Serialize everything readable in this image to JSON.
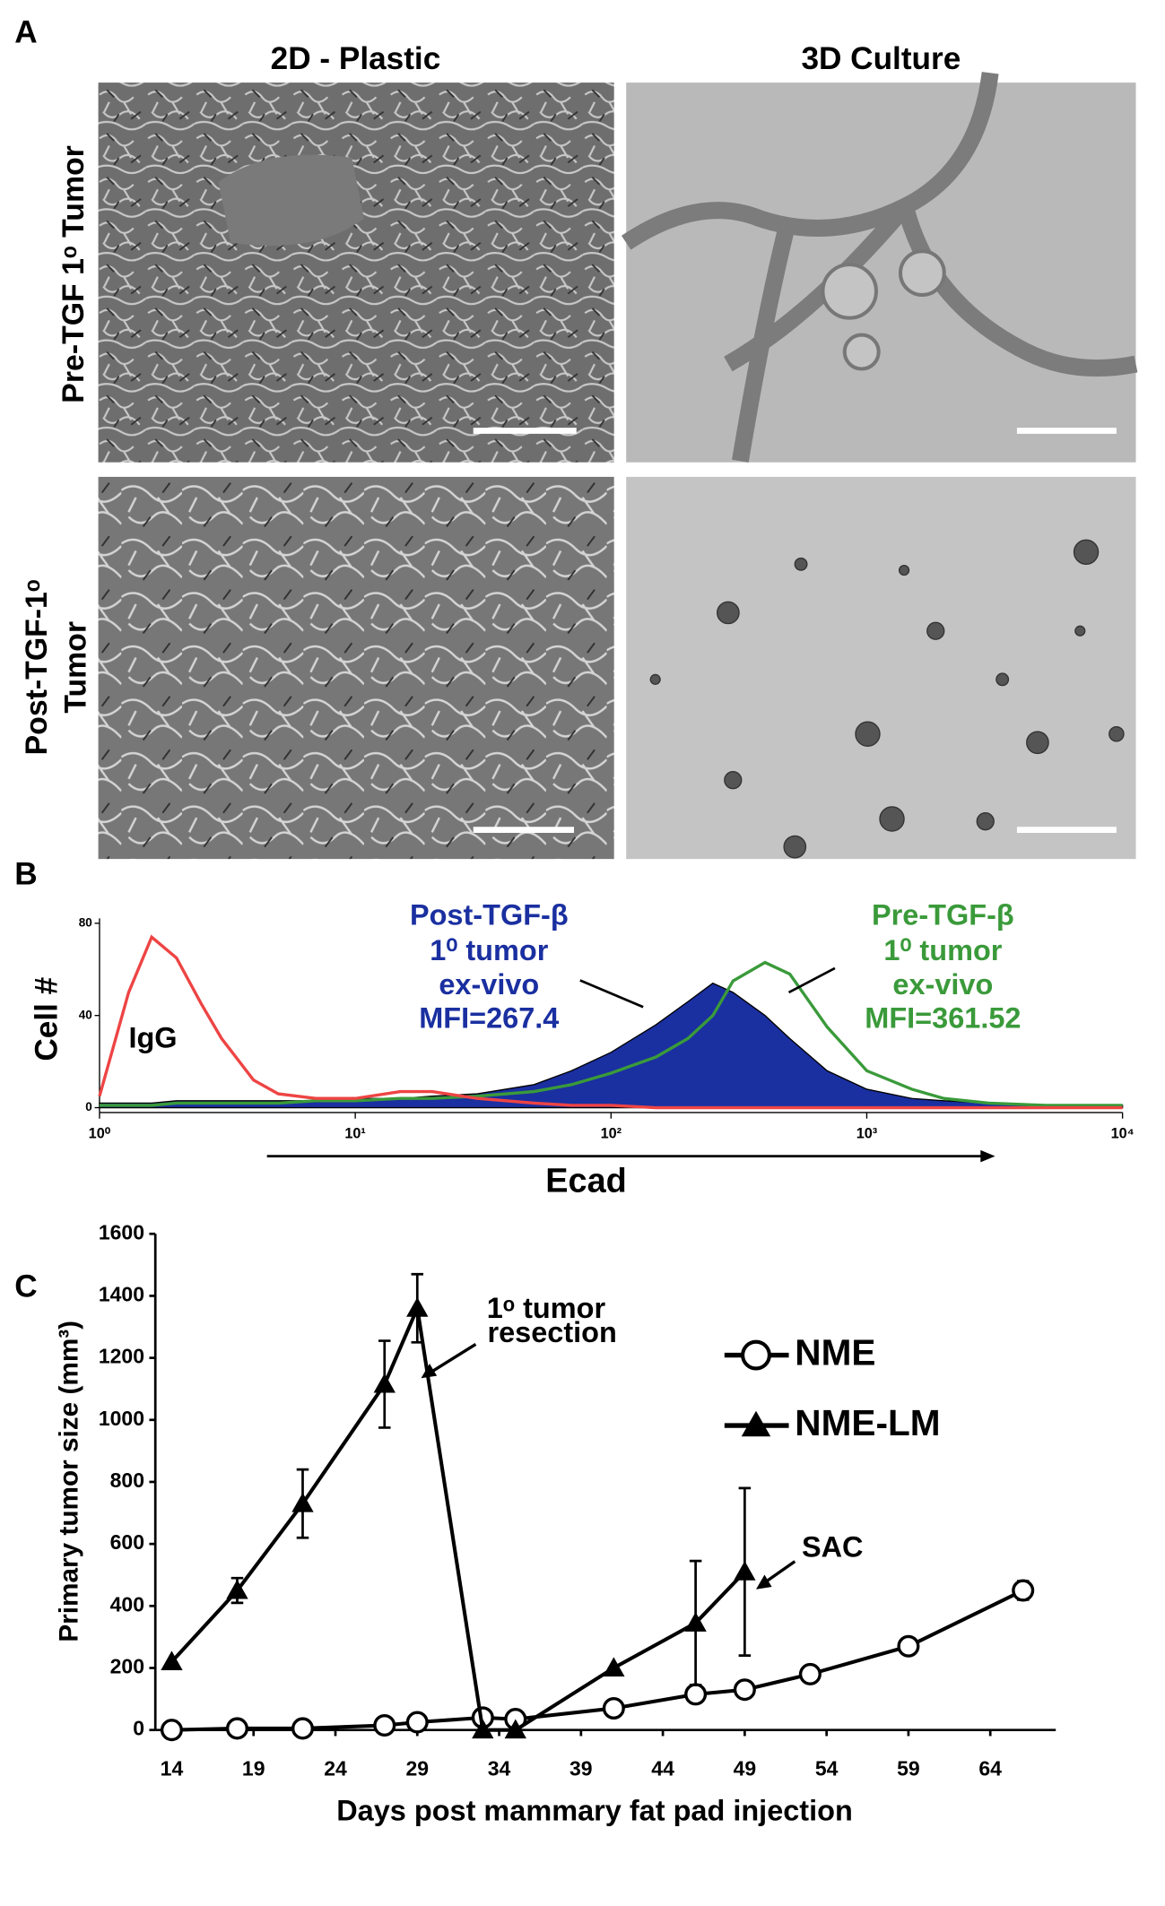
{
  "panel_a": {
    "label": "A",
    "columns": [
      "2D - Plastic",
      "3D Culture"
    ],
    "rows": [
      "Pre-TGF 1ᵒ Tumor",
      "Post-TGF-1ᵒ",
      "Tumor"
    ]
  },
  "chart_data": [
    {
      "type": "histogram-overlay",
      "panel_label": "B",
      "y_label": "Cell #",
      "x_label": "Ecad",
      "log_x": true,
      "x": [
        1,
        1.3,
        1.6,
        2,
        2.5,
        3,
        4,
        5,
        7,
        10,
        15,
        20,
        30,
        50,
        70,
        100,
        150,
        200,
        250,
        300,
        400,
        500,
        700,
        1000,
        1500,
        2000,
        3000,
        5000,
        10000
      ],
      "series": [
        {
          "name": "IgG",
          "color": "#ee4444",
          "fill": false,
          "values": [
            5,
            50,
            74,
            65,
            45,
            30,
            12,
            6,
            4,
            4,
            7,
            7,
            4,
            2,
            1,
            1,
            0,
            0,
            0,
            0,
            0,
            0,
            0,
            0,
            0,
            0,
            0,
            0,
            0
          ]
        },
        {
          "name": "Post-TGF-β",
          "color": "#1a2fa0",
          "fill": true,
          "values": [
            2,
            2,
            2,
            3,
            3,
            3,
            3,
            3,
            3,
            4,
            4,
            5,
            6,
            10,
            16,
            24,
            36,
            46,
            54,
            50,
            40,
            30,
            16,
            8,
            4,
            3,
            2,
            1,
            1
          ]
        },
        {
          "name": "Pre-TGF-β",
          "color": "#3a9a3a",
          "fill": false,
          "values": [
            1,
            1,
            1,
            2,
            2,
            2,
            2,
            2,
            3,
            3,
            4,
            4,
            5,
            7,
            10,
            15,
            22,
            30,
            40,
            55,
            63,
            58,
            35,
            16,
            8,
            4,
            2,
            1,
            1
          ]
        }
      ],
      "annotations": [
        "1⁰ tumor",
        "ex-vivo",
        "MFI=267.4",
        "1⁰ tumor",
        "ex-vivo",
        "MFI=361.52"
      ],
      "xlim": [
        1,
        10000
      ],
      "xticks": [
        {
          "value": 1,
          "label": "10⁰"
        },
        {
          "value": 10,
          "label": "10¹"
        },
        {
          "value": 100,
          "label": "10²"
        },
        {
          "value": 1000,
          "label": "10³"
        },
        {
          "value": 10000,
          "label": "10⁴"
        }
      ],
      "ylim": [
        0,
        80
      ],
      "yticks": [
        0,
        40,
        80
      ]
    },
    {
      "type": "line",
      "panel_label": "C",
      "y_label": "Primary tumor size (mm³)",
      "x_label": "Days post mammary fat pad injection",
      "series": [
        {
          "name": "NME",
          "color": "#000000",
          "marker": "circle",
          "x": [
            14,
            18,
            22,
            27,
            29,
            33,
            35,
            41,
            46,
            49,
            53,
            59,
            66
          ],
          "values": [
            0,
            5,
            5,
            15,
            25,
            40,
            35,
            70,
            115,
            130,
            180,
            270,
            450
          ],
          "errors": [
            null,
            null,
            null,
            null,
            null,
            null,
            null,
            null,
            null,
            null,
            null,
            null,
            30
          ]
        },
        {
          "name": "NME-LM",
          "color": "#000000",
          "marker": "triangle",
          "x": [
            14,
            18,
            22,
            27,
            29,
            33,
            35,
            41,
            46,
            49
          ],
          "values": [
            220,
            450,
            730,
            1115,
            1360,
            0,
            0,
            200,
            345,
            510
          ],
          "errors": [
            null,
            40,
            110,
            140,
            110,
            null,
            null,
            null,
            200,
            270
          ]
        }
      ],
      "annotations": [
        "1ᵒ tumor",
        "resection",
        "SAC"
      ],
      "xlim": [
        13,
        68
      ],
      "xticks": [
        14,
        19,
        24,
        29,
        34,
        39,
        44,
        49,
        54,
        59,
        64
      ],
      "ylim": [
        0,
        1600
      ],
      "yticks": [
        0,
        200,
        400,
        600,
        800,
        1000,
        1200,
        1400,
        1600
      ]
    }
  ]
}
